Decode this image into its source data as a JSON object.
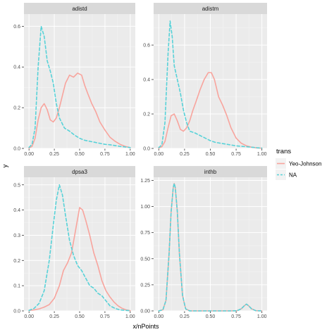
{
  "chart_data": {
    "type": "line",
    "facet_by": "panel",
    "xlabel": "x/nPoints",
    "ylabel": "y",
    "legend": {
      "title": "trans",
      "placement": "right",
      "entries": [
        {
          "name": "Yeo-Johnson",
          "color": "#F8A49D",
          "dash": "solid"
        },
        {
          "name": "NA",
          "color": "#57D2D8",
          "dash": "dashed"
        }
      ]
    },
    "grid": true,
    "panels": [
      {
        "title": "adistd",
        "xlim": [
          -0.05,
          1.05
        ],
        "ylim": [
          0,
          0.66
        ],
        "xticks": [
          0.0,
          0.25,
          0.5,
          0.75,
          1.0
        ],
        "xtick_labels": [
          "0.00",
          "0.25",
          "0.50",
          "0.75",
          "1.00"
        ],
        "yticks": [
          0.0,
          0.2,
          0.4,
          0.6
        ],
        "ytick_labels": [
          "0.0",
          "0.2",
          "0.4",
          "0.6"
        ],
        "series": [
          {
            "name": "Yeo-Johnson",
            "x": [
              0.0,
              0.03,
              0.06,
              0.09,
              0.12,
              0.15,
              0.18,
              0.21,
              0.24,
              0.27,
              0.3,
              0.33,
              0.36,
              0.4,
              0.44,
              0.48,
              0.52,
              0.55,
              0.58,
              0.62,
              0.66,
              0.7,
              0.75,
              0.8,
              0.85,
              0.9,
              0.95,
              1.0
            ],
            "y": [
              0.002,
              0.01,
              0.05,
              0.14,
              0.2,
              0.22,
              0.19,
              0.14,
              0.13,
              0.15,
              0.2,
              0.26,
              0.32,
              0.36,
              0.35,
              0.37,
              0.36,
              0.31,
              0.27,
              0.22,
              0.18,
              0.13,
              0.09,
              0.055,
              0.035,
              0.02,
              0.01,
              0.004
            ]
          },
          {
            "name": "NA",
            "x": [
              0.0,
              0.03,
              0.06,
              0.09,
              0.12,
              0.15,
              0.18,
              0.21,
              0.24,
              0.27,
              0.3,
              0.35,
              0.4,
              0.45,
              0.5,
              0.55,
              0.6,
              0.65,
              0.7,
              0.75,
              0.8,
              0.85,
              0.9,
              0.95,
              1.0
            ],
            "y": [
              0.005,
              0.02,
              0.1,
              0.4,
              0.6,
              0.55,
              0.43,
              0.38,
              0.32,
              0.22,
              0.15,
              0.1,
              0.085,
              0.065,
              0.05,
              0.04,
              0.035,
              0.03,
              0.025,
              0.02,
              0.018,
              0.014,
              0.01,
              0.007,
              0.004
            ]
          }
        ]
      },
      {
        "title": "adistm",
        "xlim": [
          -0.05,
          1.05
        ],
        "ylim": [
          0,
          0.78
        ],
        "xticks": [
          0.0,
          0.25,
          0.5,
          0.75,
          1.0
        ],
        "xtick_labels": [
          "0.00",
          "0.25",
          "0.50",
          "0.75",
          "1.00"
        ],
        "yticks": [
          0.0,
          0.2,
          0.4,
          0.6
        ],
        "ytick_labels": [
          "0.0",
          "0.2",
          "0.4",
          "0.6"
        ],
        "series": [
          {
            "name": "Yeo-Johnson",
            "x": [
              0.0,
              0.03,
              0.06,
              0.09,
              0.12,
              0.15,
              0.18,
              0.21,
              0.24,
              0.27,
              0.3,
              0.33,
              0.36,
              0.4,
              0.44,
              0.48,
              0.51,
              0.54,
              0.58,
              0.62,
              0.66,
              0.7,
              0.75,
              0.8,
              0.85,
              0.9,
              0.95,
              1.0
            ],
            "y": [
              0.002,
              0.01,
              0.04,
              0.12,
              0.19,
              0.2,
              0.16,
              0.11,
              0.1,
              0.12,
              0.16,
              0.22,
              0.27,
              0.34,
              0.4,
              0.44,
              0.44,
              0.4,
              0.3,
              0.25,
              0.19,
              0.12,
              0.06,
              0.03,
              0.015,
              0.007,
              0.003,
              0.001
            ]
          },
          {
            "name": "NA",
            "x": [
              0.0,
              0.03,
              0.06,
              0.09,
              0.11,
              0.13,
              0.15,
              0.18,
              0.21,
              0.24,
              0.27,
              0.3,
              0.35,
              0.4,
              0.45,
              0.5,
              0.55,
              0.6,
              0.65,
              0.7,
              0.75,
              0.8,
              0.85,
              0.9,
              0.95,
              1.0
            ],
            "y": [
              0.005,
              0.02,
              0.15,
              0.55,
              0.74,
              0.65,
              0.48,
              0.4,
              0.32,
              0.22,
              0.15,
              0.1,
              0.09,
              0.075,
              0.06,
              0.045,
              0.035,
              0.03,
              0.025,
              0.02,
              0.015,
              0.012,
              0.01,
              0.007,
              0.004,
              0.002
            ]
          }
        ]
      },
      {
        "title": "dpsa3",
        "xlim": [
          -0.05,
          1.05
        ],
        "ylim": [
          0,
          0.53
        ],
        "xticks": [
          0.0,
          0.25,
          0.5,
          0.75,
          1.0
        ],
        "xtick_labels": [
          "0.00",
          "0.25",
          "0.50",
          "0.75",
          "1.00"
        ],
        "yticks": [
          0.0,
          0.1,
          0.2,
          0.3,
          0.4,
          0.5
        ],
        "ytick_labels": [
          "0.0",
          "0.1",
          "0.2",
          "0.3",
          "0.4",
          "0.5"
        ],
        "series": [
          {
            "name": "Yeo-Johnson",
            "x": [
              0.0,
              0.05,
              0.1,
              0.15,
              0.2,
              0.25,
              0.3,
              0.34,
              0.38,
              0.42,
              0.46,
              0.5,
              0.53,
              0.56,
              0.6,
              0.64,
              0.68,
              0.72,
              0.76,
              0.8,
              0.84,
              0.88,
              0.92,
              0.96,
              1.0
            ],
            "y": [
              0.002,
              0.004,
              0.008,
              0.015,
              0.025,
              0.05,
              0.1,
              0.16,
              0.19,
              0.23,
              0.32,
              0.41,
              0.4,
              0.36,
              0.3,
              0.23,
              0.18,
              0.12,
              0.08,
              0.055,
              0.035,
              0.02,
              0.01,
              0.004,
              0.001
            ]
          },
          {
            "name": "NA",
            "x": [
              0.0,
              0.05,
              0.1,
              0.15,
              0.2,
              0.24,
              0.27,
              0.3,
              0.33,
              0.36,
              0.4,
              0.44,
              0.48,
              0.52,
              0.56,
              0.6,
              0.64,
              0.68,
              0.72,
              0.76,
              0.8,
              0.85,
              0.9,
              0.95,
              1.0
            ],
            "y": [
              0.002,
              0.01,
              0.03,
              0.08,
              0.2,
              0.34,
              0.44,
              0.5,
              0.46,
              0.38,
              0.28,
              0.22,
              0.18,
              0.16,
              0.13,
              0.1,
              0.09,
              0.07,
              0.06,
              0.04,
              0.02,
              0.01,
              0.004,
              0.002,
              0.001
            ]
          }
        ]
      },
      {
        "title": "inthb",
        "xlim": [
          -0.05,
          1.05
        ],
        "ylim": [
          0,
          1.28
        ],
        "xticks": [
          0.0,
          0.25,
          0.5,
          0.75,
          1.0
        ],
        "xtick_labels": [
          "0.00",
          "0.25",
          "0.50",
          "0.75",
          "1.00"
        ],
        "yticks": [
          0.0,
          0.25,
          0.5,
          0.75,
          1.0,
          1.25
        ],
        "ytick_labels": [
          "0.00",
          "0.25",
          "0.50",
          "0.75",
          "1.00",
          "1.25"
        ],
        "series": [
          {
            "name": "Yeo-Johnson",
            "x": [
              0.0,
              0.04,
              0.07,
              0.1,
              0.12,
              0.14,
              0.15,
              0.16,
              0.18,
              0.2,
              0.23,
              0.26,
              0.3,
              0.4,
              0.5,
              0.6,
              0.7,
              0.76,
              0.8,
              0.83,
              0.85,
              0.87,
              0.9,
              0.94,
              1.0
            ],
            "y": [
              0.0,
              0.01,
              0.1,
              0.55,
              0.95,
              1.18,
              1.22,
              1.18,
              0.95,
              0.55,
              0.15,
              0.02,
              0.0,
              0.0,
              0.0,
              0.0,
              0.0,
              0.002,
              0.02,
              0.05,
              0.065,
              0.05,
              0.02,
              0.002,
              0.0
            ]
          },
          {
            "name": "NA",
            "x": [
              0.0,
              0.04,
              0.07,
              0.1,
              0.12,
              0.14,
              0.15,
              0.16,
              0.18,
              0.2,
              0.23,
              0.26,
              0.3,
              0.4,
              0.5,
              0.6,
              0.7,
              0.76,
              0.8,
              0.83,
              0.85,
              0.87,
              0.9,
              0.94,
              1.0
            ],
            "y": [
              0.0,
              0.01,
              0.1,
              0.55,
              0.95,
              1.18,
              1.22,
              1.18,
              0.95,
              0.55,
              0.15,
              0.02,
              0.0,
              0.0,
              0.0,
              0.0,
              0.0,
              0.002,
              0.02,
              0.05,
              0.065,
              0.05,
              0.02,
              0.002,
              0.0
            ]
          }
        ]
      }
    ]
  }
}
